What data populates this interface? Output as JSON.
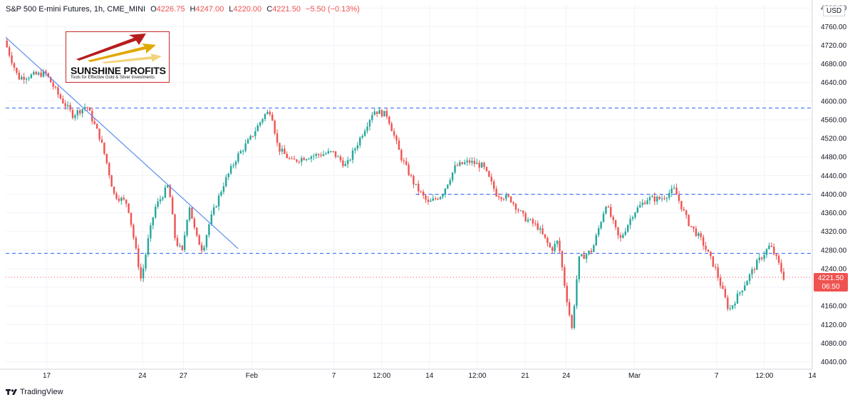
{
  "header": {
    "symbol": "S&P 500 E-mini Futures, 1h, CME_MINI",
    "open_label": "O",
    "open_value": "4226.75",
    "high_label": "H",
    "high_value": "4247.00",
    "low_label": "L",
    "low_value": "4220.00",
    "close_label": "C",
    "close_value": "4221.50",
    "change": "−5.50 (−0.13%)"
  },
  "logo": {
    "name": "SUNSHINE PROFITS",
    "tagline": "Tools for Effective Gold & Silver Investments"
  },
  "currency": "USD",
  "price_tag": {
    "price": "4221.50",
    "countdown": "06:50"
  },
  "footer": {
    "brand": "TradingView"
  },
  "colors": {
    "up": "#26a69a",
    "down": "#ef5350",
    "levels": "#2962ff",
    "trend": "#5b8def"
  },
  "chart_data": {
    "type": "candlestick",
    "title": "S&P 500 E-mini Futures, 1h, CME_MINI",
    "ylim": [
      4024,
      4808
    ],
    "yticks": [
      4800,
      4760,
      4720,
      4680,
      4640,
      4600,
      4560,
      4520,
      4480,
      4440,
      4400,
      4360,
      4320,
      4280,
      4240,
      4200,
      4160,
      4120,
      4080,
      4040
    ],
    "xticks": [
      "17",
      "24",
      "27",
      "Feb",
      "7",
      "12:00",
      "14",
      "12:00",
      "21",
      "24",
      "Mar",
      "7",
      "12:00",
      "14"
    ],
    "x_range": [
      "Jan 14",
      "Mar 14"
    ],
    "grid": true,
    "horizontal_levels": [
      4585,
      4400,
      4273
    ],
    "last_price_line": 4221.5,
    "trendline": {
      "from": {
        "date": "Jan 14",
        "price": 4737
      },
      "to": {
        "date": "Jan 31",
        "price": 4283
      }
    },
    "price_path": [
      [
        "Jan 14",
        4730
      ],
      [
        "Jan 15",
        4650
      ],
      [
        "Jan 17",
        4660
      ],
      [
        "Jan 18",
        4610
      ],
      [
        "Jan 19",
        4570
      ],
      [
        "Jan 20",
        4590
      ],
      [
        "Jan 21",
        4520
      ],
      [
        "Jan 21 12:00",
        4465
      ],
      [
        "Jan 22",
        4400
      ],
      [
        "Jan 23",
        4380
      ],
      [
        "Jan 24",
        4215
      ],
      [
        "Jan 24 12:00",
        4300
      ],
      [
        "Jan 25",
        4370
      ],
      [
        "Jan 26",
        4420
      ],
      [
        "Jan 26 12:00",
        4300
      ],
      [
        "Jan 27",
        4275
      ],
      [
        "Jan 27 12:00",
        4380
      ],
      [
        "Jan 28",
        4310
      ],
      [
        "Jan 28 12:00",
        4280
      ],
      [
        "Jan 29",
        4340
      ],
      [
        "Jan 30",
        4420
      ],
      [
        "Jan 31",
        4480
      ],
      [
        "Feb 1",
        4520
      ],
      [
        "Feb 2",
        4570
      ],
      [
        "Feb 2 12:00",
        4580
      ],
      [
        "Feb 3",
        4500
      ],
      [
        "Feb 4",
        4470
      ],
      [
        "Feb 5",
        4480
      ],
      [
        "Feb 7",
        4490
      ],
      [
        "Feb 8",
        4460
      ],
      [
        "Feb 9",
        4520
      ],
      [
        "Feb 10",
        4580
      ],
      [
        "Feb 11",
        4570
      ],
      [
        "Feb 12",
        4480
      ],
      [
        "Feb 13",
        4420
      ],
      [
        "Feb 14",
        4380
      ],
      [
        "Feb 15",
        4400
      ],
      [
        "Feb 16",
        4460
      ],
      [
        "Feb 17",
        4470
      ],
      [
        "Feb 18",
        4460
      ],
      [
        "Feb 19",
        4400
      ],
      [
        "Feb 20",
        4390
      ],
      [
        "Feb 21",
        4350
      ],
      [
        "Feb 22",
        4330
      ],
      [
        "Feb 23",
        4280
      ],
      [
        "Feb 23 12:00",
        4300
      ],
      [
        "Feb 24",
        4200
      ],
      [
        "Feb 24 12:00",
        4110
      ],
      [
        "Feb 25",
        4260
      ],
      [
        "Feb 26",
        4280
      ],
      [
        "Feb 27",
        4380
      ],
      [
        "Feb 28",
        4300
      ],
      [
        "Mar 1",
        4360
      ],
      [
        "Mar 2",
        4390
      ],
      [
        "Mar 3",
        4390
      ],
      [
        "Mar 4",
        4410
      ],
      [
        "Mar 5",
        4340
      ],
      [
        "Mar 6",
        4300
      ],
      [
        "Mar 7",
        4240
      ],
      [
        "Mar 8",
        4150
      ],
      [
        "Mar 9",
        4200
      ],
      [
        "Mar 10",
        4250
      ],
      [
        "Mar 11",
        4290
      ],
      [
        "Mar 11 12:00",
        4260
      ],
      [
        "Mar 12",
        4221.5
      ]
    ]
  }
}
